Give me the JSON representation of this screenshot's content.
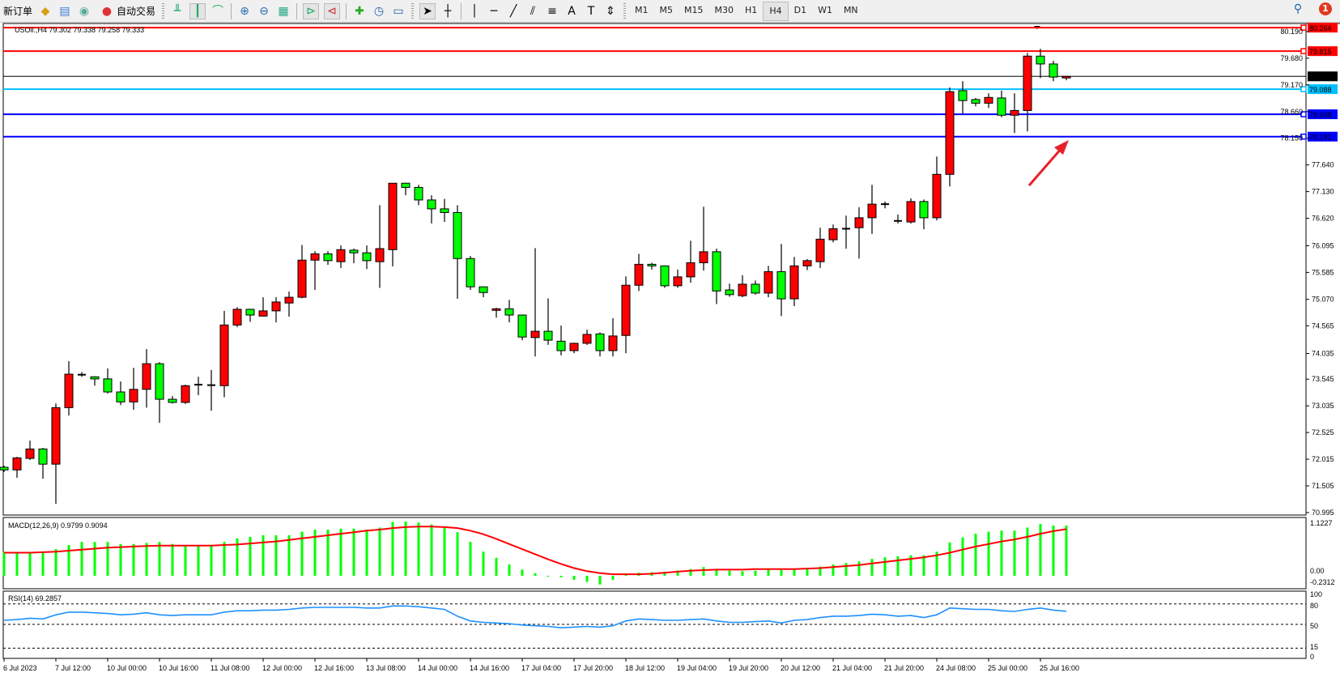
{
  "toolbar": {
    "new_order": "新订单",
    "auto_trading": "自动交易",
    "timeframes": [
      "M1",
      "M5",
      "M15",
      "M30",
      "H1",
      "H4",
      "D1",
      "W1",
      "MN"
    ],
    "active_timeframe": "H4",
    "notification_count": "1",
    "icons": [
      "new-order-icon",
      "market-watch-icon",
      "navigator-icon",
      "signals-icon",
      "auto-trading-icon",
      "bar-chart-icon",
      "candlestick-icon",
      "line-chart-icon",
      "zoom-in-icon",
      "zoom-out-icon",
      "tile-windows-icon",
      "auto-scroll-icon",
      "chart-shift-icon",
      "indicators-icon",
      "periods-icon",
      "templates-icon",
      "cursor-icon",
      "crosshair-icon",
      "vertical-line-icon",
      "horizontal-line-icon",
      "trendline-icon",
      "equidistant-channel-icon",
      "fibonacci-icon",
      "text-icon",
      "text-label-icon",
      "arrows-icon",
      "search-icon",
      "notification-icon"
    ]
  },
  "chart": {
    "header": "USOil.,H4  79.302 79.338 79.258 79.333",
    "symbol": "USOil.",
    "timeframe": "H4",
    "bull_color": "#ff0000",
    "bear_color": "#00ff00",
    "price_ticks": [
      "80.190",
      "79.680",
      "79.170",
      "78.660",
      "78.150",
      "77.640",
      "77.130",
      "76.620",
      "76.095",
      "75.585",
      "75.070",
      "74.565",
      "74.035",
      "73.545",
      "73.035",
      "72.525",
      "72.015",
      "71.505",
      "70.995"
    ],
    "hlines": [
      {
        "price": "80.264",
        "color": "#ff0000"
      },
      {
        "price": "79.815",
        "color": "#ff0000"
      },
      {
        "price": "79.333",
        "color": "#000000"
      },
      {
        "price": "79.088",
        "color": "#00bfff"
      },
      {
        "price": "78.608",
        "color": "#0000ff"
      },
      {
        "price": "78.181",
        "color": "#0000ff"
      }
    ],
    "arrow_color": "#e8202a",
    "time_labels": [
      "6 Jul 2023",
      "7 Jul 12:00",
      "10 Jul 00:00",
      "10 Jul 16:00",
      "11 Jul 08:00",
      "12 Jul 00:00",
      "12 Jul 16:00",
      "13 Jul 08:00",
      "14 Jul 00:00",
      "14 Jul 16:00",
      "17 Jul 04:00",
      "17 Jul 20:00",
      "18 Jul 12:00",
      "19 Jul 04:00",
      "19 Jul 20:00",
      "20 Jul 12:00",
      "21 Jul 04:00",
      "21 Jul 20:00",
      "24 Jul 08:00",
      "25 Jul 00:00",
      "25 Jul 16:00"
    ]
  },
  "chart_data": {
    "type": "candlestick",
    "ohlc": [
      [
        71.86,
        71.89,
        71.77,
        71.81
      ],
      [
        71.81,
        72.06,
        71.66,
        72.04
      ],
      [
        72.03,
        72.37,
        72.0,
        72.21
      ],
      [
        72.21,
        72.23,
        71.64,
        71.92
      ],
      [
        71.92,
        73.08,
        71.16,
        73.0
      ],
      [
        73.0,
        73.89,
        72.85,
        73.64
      ],
      [
        73.63,
        73.68,
        73.59,
        73.63
      ],
      [
        73.59,
        73.6,
        73.42,
        73.55
      ],
      [
        73.55,
        73.75,
        73.27,
        73.3
      ],
      [
        73.3,
        73.5,
        73.05,
        73.11
      ],
      [
        73.11,
        73.76,
        72.96,
        73.35
      ],
      [
        73.35,
        74.12,
        73.0,
        73.84
      ],
      [
        73.84,
        73.87,
        72.71,
        73.16
      ],
      [
        73.16,
        73.22,
        73.08,
        73.1
      ],
      [
        73.1,
        73.44,
        73.07,
        73.42
      ],
      [
        73.43,
        73.59,
        73.24,
        73.44
      ],
      [
        73.43,
        73.72,
        72.94,
        73.42
      ],
      [
        73.42,
        74.85,
        73.2,
        74.58
      ],
      [
        74.58,
        74.92,
        74.54,
        74.88
      ],
      [
        74.88,
        74.89,
        74.64,
        74.77
      ],
      [
        74.75,
        75.11,
        74.74,
        74.85
      ],
      [
        74.85,
        75.11,
        74.63,
        75.02
      ],
      [
        75.0,
        75.22,
        74.74,
        75.11
      ],
      [
        75.11,
        76.11,
        75.09,
        75.82
      ],
      [
        75.82,
        75.99,
        75.25,
        75.94
      ],
      [
        75.94,
        75.99,
        75.73,
        75.81
      ],
      [
        75.79,
        76.1,
        75.67,
        76.02
      ],
      [
        76.01,
        76.04,
        75.76,
        75.96
      ],
      [
        75.96,
        76.1,
        75.65,
        75.81
      ],
      [
        75.79,
        76.87,
        75.29,
        76.04
      ],
      [
        76.02,
        77.29,
        75.7,
        77.29
      ],
      [
        77.29,
        77.3,
        77.06,
        77.21
      ],
      [
        77.21,
        77.26,
        76.87,
        76.97
      ],
      [
        76.97,
        77.06,
        76.52,
        76.8
      ],
      [
        76.8,
        76.99,
        76.55,
        76.73
      ],
      [
        76.73,
        76.87,
        75.08,
        75.85
      ],
      [
        75.85,
        75.9,
        75.25,
        75.31
      ],
      [
        75.31,
        75.31,
        75.11,
        75.2
      ],
      [
        74.86,
        74.91,
        74.72,
        74.89
      ],
      [
        74.89,
        75.06,
        74.63,
        74.77
      ],
      [
        74.77,
        74.78,
        74.29,
        74.35
      ],
      [
        74.34,
        76.05,
        73.98,
        74.46
      ],
      [
        74.46,
        75.09,
        74.2,
        74.29
      ],
      [
        74.27,
        74.57,
        74.0,
        74.09
      ],
      [
        74.09,
        74.24,
        74.04,
        74.23
      ],
      [
        74.23,
        74.49,
        74.2,
        74.4
      ],
      [
        74.41,
        74.44,
        73.98,
        74.09
      ],
      [
        74.09,
        74.71,
        73.98,
        74.37
      ],
      [
        74.38,
        75.51,
        74.04,
        75.34
      ],
      [
        75.34,
        75.94,
        75.23,
        75.74
      ],
      [
        75.74,
        75.77,
        75.64,
        75.71
      ],
      [
        75.71,
        75.71,
        75.29,
        75.33
      ],
      [
        75.33,
        75.64,
        75.29,
        75.5
      ],
      [
        75.5,
        76.19,
        75.39,
        75.77
      ],
      [
        75.77,
        76.84,
        75.62,
        75.98
      ],
      [
        75.98,
        76.04,
        74.98,
        75.23
      ],
      [
        75.25,
        75.37,
        75.12,
        75.16
      ],
      [
        75.14,
        75.53,
        75.11,
        75.36
      ],
      [
        75.36,
        75.43,
        75.16,
        75.19
      ],
      [
        75.19,
        75.71,
        75.11,
        75.6
      ],
      [
        75.6,
        76.13,
        74.75,
        75.08
      ],
      [
        75.08,
        75.88,
        74.94,
        75.71
      ],
      [
        75.71,
        75.84,
        75.63,
        75.81
      ],
      [
        75.79,
        76.44,
        75.67,
        76.22
      ],
      [
        76.21,
        76.5,
        76.16,
        76.42
      ],
      [
        76.42,
        76.67,
        76.04,
        76.42
      ],
      [
        76.44,
        76.83,
        75.85,
        76.63
      ],
      [
        76.63,
        77.26,
        76.32,
        76.89
      ],
      [
        76.88,
        76.94,
        76.81,
        76.89
      ],
      [
        76.57,
        76.69,
        76.52,
        76.56
      ],
      [
        76.55,
        77.0,
        76.52,
        76.94
      ],
      [
        76.94,
        76.98,
        76.41,
        76.63
      ],
      [
        76.63,
        77.8,
        76.58,
        77.46
      ],
      [
        77.46,
        79.12,
        77.23,
        79.04
      ],
      [
        79.06,
        79.24,
        78.62,
        78.87
      ],
      [
        78.89,
        78.92,
        78.76,
        78.82
      ],
      [
        78.82,
        79.01,
        78.73,
        78.93
      ],
      [
        78.92,
        79.06,
        78.55,
        78.59
      ],
      [
        78.59,
        79.01,
        78.25,
        78.68
      ],
      [
        78.68,
        79.78,
        78.28,
        79.72
      ],
      [
        79.72,
        79.86,
        79.3,
        79.57
      ],
      [
        79.57,
        79.63,
        79.24,
        79.32
      ],
      [
        79.302,
        79.338,
        79.258,
        79.333
      ]
    ],
    "ylim": [
      70.9,
      80.3
    ],
    "macd": {
      "label": "MACD(12,26,9) 0.9799 0.9094",
      "ticks": [
        "1.1227",
        "0.00",
        "-0.2312"
      ],
      "ylim": [
        -0.2312,
        1.1227
      ],
      "hist_color": "#00ff00",
      "signal_color": "#ff0000",
      "histogram": [
        0.46,
        0.46,
        0.46,
        0.46,
        0.52,
        0.6,
        0.66,
        0.66,
        0.66,
        0.62,
        0.62,
        0.64,
        0.66,
        0.62,
        0.6,
        0.59,
        0.58,
        0.66,
        0.73,
        0.76,
        0.79,
        0.79,
        0.79,
        0.86,
        0.9,
        0.9,
        0.92,
        0.92,
        0.9,
        0.94,
        1.05,
        1.06,
        1.04,
        1.0,
        0.93,
        0.85,
        0.66,
        0.47,
        0.35,
        0.22,
        0.12,
        0.05,
        0.0,
        -0.03,
        -0.08,
        -0.12,
        -0.17,
        -0.08,
        0.02,
        0.06,
        0.07,
        0.08,
        0.1,
        0.13,
        0.17,
        0.12,
        0.1,
        0.09,
        0.1,
        0.12,
        0.11,
        0.12,
        0.14,
        0.18,
        0.22,
        0.25,
        0.28,
        0.33,
        0.36,
        0.38,
        0.4,
        0.4,
        0.47,
        0.65,
        0.75,
        0.82,
        0.86,
        0.88,
        0.88,
        0.94,
        1.01,
        0.98,
        0.9799
      ],
      "signal": [
        0.45,
        0.45,
        0.45,
        0.46,
        0.47,
        0.49,
        0.51,
        0.53,
        0.55,
        0.56,
        0.57,
        0.58,
        0.59,
        0.59,
        0.59,
        0.59,
        0.59,
        0.6,
        0.61,
        0.63,
        0.65,
        0.67,
        0.7,
        0.73,
        0.76,
        0.79,
        0.82,
        0.85,
        0.88,
        0.9,
        0.93,
        0.95,
        0.96,
        0.96,
        0.95,
        0.93,
        0.88,
        0.81,
        0.72,
        0.62,
        0.52,
        0.42,
        0.32,
        0.23,
        0.15,
        0.09,
        0.05,
        0.03,
        0.03,
        0.03,
        0.04,
        0.06,
        0.08,
        0.1,
        0.11,
        0.12,
        0.12,
        0.12,
        0.13,
        0.13,
        0.13,
        0.13,
        0.14,
        0.15,
        0.17,
        0.19,
        0.21,
        0.24,
        0.27,
        0.3,
        0.33,
        0.36,
        0.4,
        0.45,
        0.51,
        0.57,
        0.62,
        0.67,
        0.71,
        0.76,
        0.82,
        0.87,
        0.9094
      ]
    },
    "rsi": {
      "label": "RSI(14) 69.2857",
      "ticks": [
        "100",
        "80",
        "50",
        "15",
        "0"
      ],
      "levels": [
        80,
        50,
        15
      ],
      "ylim": [
        0,
        100
      ],
      "color": "#1e90ff",
      "values": [
        56,
        57,
        59,
        58,
        64,
        68,
        68,
        67,
        66,
        64,
        65,
        67,
        64,
        63,
        64,
        64,
        64,
        68,
        70,
        70,
        71,
        71,
        72,
        74,
        75,
        75,
        75,
        75,
        74,
        74,
        77,
        77,
        76,
        74,
        72,
        62,
        55,
        53,
        52,
        51,
        49,
        48,
        47,
        45,
        46,
        47,
        46,
        48,
        55,
        58,
        57,
        56,
        56,
        57,
        58,
        55,
        53,
        53,
        54,
        55,
        52,
        56,
        57,
        60,
        62,
        62,
        63,
        65,
        64,
        62,
        63,
        60,
        64,
        74,
        73,
        72,
        72,
        70,
        69,
        72,
        74,
        71,
        69.2857
      ]
    }
  }
}
